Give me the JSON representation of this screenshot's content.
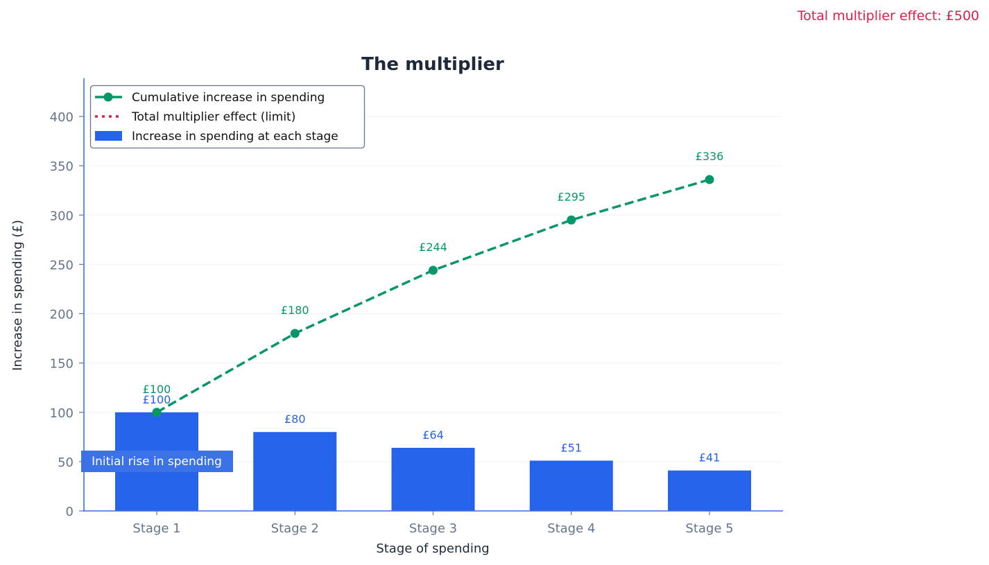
{
  "annotation_top_right": "Total multiplier effect: £500",
  "chart_data": {
    "type": "bar",
    "title": "The multiplier",
    "xlabel": "Stage of spending",
    "ylabel": "Increase in spending (£)",
    "categories": [
      "Stage 1",
      "Stage 2",
      "Stage 3",
      "Stage 4",
      "Stage 5"
    ],
    "ylim": [
      0,
      440
    ],
    "yticks": [
      0,
      50,
      100,
      150,
      200,
      250,
      300,
      350,
      400
    ],
    "grid": true,
    "legend_position": "upper left",
    "series": [
      {
        "name": "Increase in spending at each stage",
        "type": "bar",
        "color": "#2563eb",
        "values": [
          100,
          80,
          64,
          51,
          41
        ],
        "labels": [
          "£100",
          "£80",
          "£64",
          "£51",
          "£41"
        ]
      },
      {
        "name": "Cumulative increase in spending",
        "type": "line",
        "style": "dashed with circle markers",
        "color": "#059669",
        "values": [
          100,
          180,
          244,
          295,
          336
        ],
        "labels": [
          "£100",
          "£180",
          "£244",
          "£295",
          "£336"
        ]
      },
      {
        "name": "Total multiplier effect (limit)",
        "type": "hline",
        "style": "dotted",
        "color": "#e11d48",
        "value": 500
      }
    ],
    "annotations": [
      {
        "text": "Initial rise in spending",
        "x": "Stage 1",
        "y": 50
      },
      {
        "text": "Total multiplier effect: £500",
        "position": "top-right"
      }
    ]
  },
  "legend": [
    {
      "label": "Cumulative increase in spending",
      "kind": "line-marker",
      "color": "#059669"
    },
    {
      "label": "Total multiplier effect (limit)",
      "kind": "dotted",
      "color": "#e11d48"
    },
    {
      "label": "Increase in spending at each stage",
      "kind": "patch",
      "color": "#2563eb"
    }
  ],
  "colors": {
    "bar": "#2563eb",
    "line": "#059669",
    "limit": "#e11d48",
    "axis": "#3b6fe0",
    "tick_text": "#64748b",
    "title": "#1e293b",
    "grid": "#f1f5f9"
  }
}
